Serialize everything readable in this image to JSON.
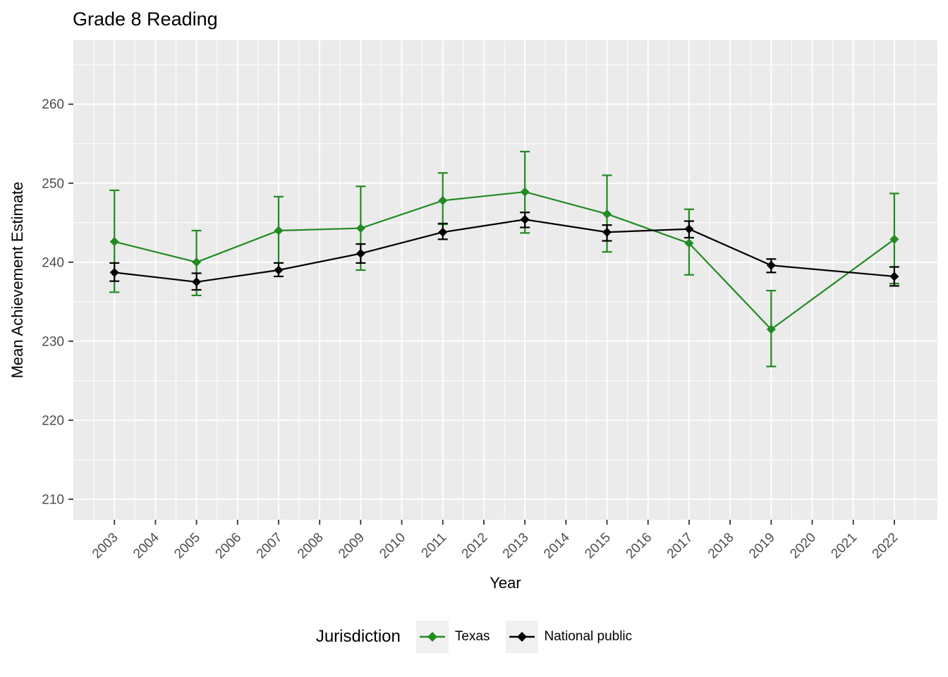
{
  "title": "Grade 8 Reading",
  "chart_data": {
    "type": "line",
    "title": "Grade 8 Reading",
    "xlabel": "Year",
    "ylabel": "Mean Achievement Estimate",
    "legend_title": "Jurisdiction",
    "legend_position": "bottom",
    "grid": true,
    "panel_background": "#EBEBEB",
    "gridline_color": "#FFFFFF",
    "tick_label_color": "#4D4D4D",
    "tick_mark_color": "#333333",
    "x_ticks": [
      2003,
      2004,
      2005,
      2006,
      2007,
      2008,
      2009,
      2010,
      2011,
      2012,
      2013,
      2014,
      2015,
      2016,
      2017,
      2018,
      2019,
      2020,
      2021,
      2022
    ],
    "y_ticks": [
      210,
      220,
      230,
      240,
      250,
      260
    ],
    "x_range": [
      2002.0,
      2023.05
    ],
    "y_range": [
      207.4,
      268.1
    ],
    "x": [
      2003,
      2005,
      2007,
      2009,
      2011,
      2013,
      2015,
      2017,
      2019,
      2022
    ],
    "series": [
      {
        "name": "Texas",
        "color": "#228B22",
        "values": [
          242.6,
          240.0,
          244.0,
          244.3,
          247.8,
          248.9,
          246.1,
          242.4,
          231.5,
          242.9
        ],
        "ci_low": [
          236.2,
          235.8,
          239.9,
          239.0,
          244.8,
          243.7,
          241.3,
          238.4,
          226.8,
          237.3
        ],
        "ci_high": [
          249.1,
          244.0,
          248.3,
          249.6,
          251.3,
          254.0,
          251.0,
          246.7,
          236.4,
          248.7
        ]
      },
      {
        "name": "National public",
        "color": "#000000",
        "values": [
          238.7,
          237.5,
          239.0,
          241.1,
          243.8,
          245.4,
          243.8,
          244.2,
          239.6,
          238.2
        ],
        "ci_low": [
          237.6,
          236.5,
          238.2,
          239.9,
          242.9,
          244.4,
          242.7,
          243.1,
          238.7,
          237.0
        ],
        "ci_high": [
          239.9,
          238.6,
          239.9,
          242.3,
          244.9,
          246.3,
          244.7,
          245.2,
          240.4,
          239.4
        ]
      }
    ]
  }
}
